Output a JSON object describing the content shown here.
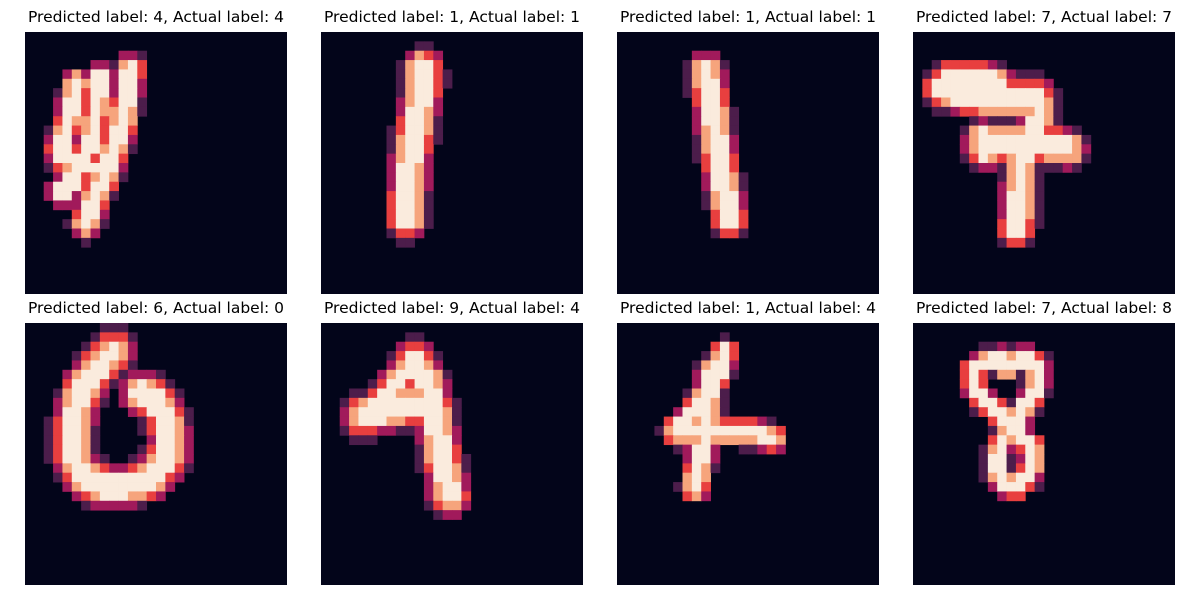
{
  "chart_data": [
    {
      "type": "heatmap",
      "title": "Predicted label: 4, Actual label: 4",
      "xlabel": "",
      "ylabel": "",
      "grid": false,
      "background_color": "#03051a",
      "colors": [
        "#03051a",
        "#4c1d4b",
        "#a11a5b",
        "#e83f3f",
        "#f6a47c",
        "#faebdd"
      ],
      "strokes": [
        {
          "w": 1.6,
          "pts": [
            [
              8,
              5
            ],
            [
              7.5,
              9
            ],
            [
              7,
              12
            ],
            [
              6,
              14
            ],
            [
              5,
              16
            ],
            [
              4,
              17
            ]
          ]
        },
        {
          "w": 1.6,
          "pts": [
            [
              5.5,
              5.5
            ],
            [
              5,
              8
            ],
            [
              4.5,
              10
            ],
            [
              3.8,
              12.5
            ],
            [
              4,
              13.5
            ],
            [
              6,
              14
            ],
            [
              7,
              14.5
            ]
          ]
        },
        {
          "w": 1.7,
          "pts": [
            [
              11.2,
              4
            ],
            [
              11,
              6
            ],
            [
              10.5,
              9
            ],
            [
              9.8,
              12
            ],
            [
              9,
              14
            ],
            [
              8,
              16.5
            ],
            [
              7,
              19
            ],
            [
              6.5,
              20.5
            ]
          ]
        }
      ]
    },
    {
      "type": "heatmap",
      "title": "Predicted label: 1, Actual label: 1",
      "xlabel": "",
      "ylabel": "",
      "grid": false,
      "background_color": "#03051a",
      "colors": [
        "#03051a",
        "#4c1d4b",
        "#a11a5b",
        "#e83f3f",
        "#f6a47c",
        "#faebdd"
      ],
      "strokes": [
        {
          "w": 2.2,
          "pts": [
            [
              10.8,
              3.8
            ],
            [
              11,
              5
            ],
            [
              10.5,
              8
            ],
            [
              10,
              11
            ],
            [
              9.5,
              14
            ],
            [
              9.3,
              17
            ],
            [
              9.2,
              20
            ]
          ]
        }
      ]
    },
    {
      "type": "heatmap",
      "title": "Predicted label: 1, Actual label: 1",
      "xlabel": "",
      "ylabel": "",
      "grid": false,
      "background_color": "#03051a",
      "colors": [
        "#03051a",
        "#4c1d4b",
        "#a11a5b",
        "#e83f3f",
        "#f6a47c",
        "#faebdd"
      ],
      "strokes": [
        {
          "w": 2.0,
          "pts": [
            [
              9.5,
              4.2
            ],
            [
              10,
              7
            ],
            [
              10.4,
              10
            ],
            [
              10.8,
              13
            ],
            [
              11.3,
              16
            ],
            [
              11.8,
              18.5
            ],
            [
              12,
              20
            ]
          ]
        }
      ]
    },
    {
      "type": "heatmap",
      "title": "Predicted label: 7, Actual label: 7",
      "xlabel": "",
      "ylabel": "",
      "grid": false,
      "background_color": "#03051a",
      "colors": [
        "#03051a",
        "#4c1d4b",
        "#a11a5b",
        "#e83f3f",
        "#f6a47c",
        "#faebdd"
      ],
      "strokes": [
        {
          "w": 2.0,
          "pts": [
            [
              4,
              5
            ],
            [
              7,
              5
            ],
            [
              9,
              5.5
            ]
          ]
        },
        {
          "w": 2.2,
          "pts": [
            [
              3.2,
              6
            ],
            [
              5.5,
              6.8
            ],
            [
              8,
              7.2
            ],
            [
              10.5,
              7.2
            ],
            [
              13,
              7
            ]
          ]
        },
        {
          "w": 2.0,
          "pts": [
            [
              13,
              7
            ],
            [
              13.5,
              8.5
            ],
            [
              13,
              10.5
            ],
            [
              12.5,
              12
            ],
            [
              12,
              13
            ]
          ]
        },
        {
          "w": 2.2,
          "pts": [
            [
              7.5,
              11.8
            ],
            [
              10,
              11.8
            ],
            [
              13,
              12
            ],
            [
              15.5,
              12.2
            ],
            [
              16.5,
              12.5
            ]
          ]
        },
        {
          "w": 1.8,
          "pts": [
            [
              7.5,
              11
            ],
            [
              7.6,
              13
            ]
          ]
        },
        {
          "w": 2.0,
          "pts": [
            [
              11.5,
              13
            ],
            [
              11.5,
              16
            ],
            [
              11.3,
              19
            ],
            [
              11,
              21
            ]
          ]
        }
      ]
    },
    {
      "type": "heatmap",
      "title": "Predicted label: 6, Actual label: 0",
      "xlabel": "",
      "ylabel": "",
      "grid": false,
      "background_color": "#03051a",
      "colors": [
        "#03051a",
        "#4c1d4b",
        "#a11a5b",
        "#e83f3f",
        "#f6a47c",
        "#faebdd"
      ],
      "strokes": [
        {
          "w": 2.3,
          "pts": [
            [
              9.5,
              3
            ],
            [
              8,
              4.5
            ],
            [
              6.5,
              6.5
            ],
            [
              5.5,
              9
            ],
            [
              5,
              12
            ],
            [
              5.2,
              14.5
            ],
            [
              6.5,
              16.5
            ],
            [
              8.5,
              17.5
            ],
            [
              11,
              17.5
            ],
            [
              13.5,
              16.5
            ],
            [
              15.2,
              14.5
            ],
            [
              15.5,
              12
            ],
            [
              14.8,
              9.5
            ],
            [
              13.8,
              8.2
            ],
            [
              12.5,
              7.5
            ]
          ]
        }
      ]
    },
    {
      "type": "heatmap",
      "title": "Predicted label: 9, Actual label: 4",
      "xlabel": "",
      "ylabel": "",
      "grid": false,
      "background_color": "#03051a",
      "colors": [
        "#03051a",
        "#4c1d4b",
        "#a11a5b",
        "#e83f3f",
        "#f6a47c",
        "#faebdd"
      ],
      "strokes": [
        {
          "w": 2.3,
          "pts": [
            [
              4.5,
              10
            ],
            [
              7.5,
              9.2
            ],
            [
              10,
              8.8
            ],
            [
              11.8,
              8.5
            ]
          ]
        },
        {
          "w": 1.8,
          "pts": [
            [
              5,
              10.3
            ],
            [
              6.8,
              8
            ],
            [
              8.8,
              5.5
            ],
            [
              10,
              4
            ]
          ]
        },
        {
          "w": 2.2,
          "pts": [
            [
              10,
              4
            ],
            [
              11.2,
              6
            ],
            [
              12,
              9
            ],
            [
              12.5,
              12
            ],
            [
              13,
              15
            ],
            [
              13.5,
              17
            ],
            [
              13.7,
              18.5
            ]
          ]
        }
      ]
    },
    {
      "type": "heatmap",
      "title": "Predicted label: 1, Actual label: 4",
      "xlabel": "",
      "ylabel": "",
      "grid": false,
      "background_color": "#03051a",
      "colors": [
        "#03051a",
        "#4c1d4b",
        "#a11a5b",
        "#e83f3f",
        "#f6a47c",
        "#faebdd"
      ],
      "strokes": [
        {
          "w": 1.5,
          "pts": [
            [
              11.5,
              3
            ],
            [
              11,
              5
            ],
            [
              10,
              7
            ],
            [
              9,
              8.5
            ],
            [
              8,
              9.8
            ],
            [
              7,
              10.8
            ],
            [
              6.2,
              11.8
            ]
          ]
        },
        {
          "w": 1.6,
          "pts": [
            [
              6.5,
              11.2
            ],
            [
              9,
              11.8
            ],
            [
              12,
              11.5
            ],
            [
              15,
              11.8
            ],
            [
              16.5,
              12.3
            ]
          ]
        },
        {
          "w": 1.6,
          "pts": [
            [
              10,
              5.2
            ],
            [
              9.8,
              8
            ],
            [
              9.5,
              11
            ],
            [
              9,
              14
            ],
            [
              8.6,
              16
            ],
            [
              8.3,
              17.5
            ]
          ]
        }
      ]
    },
    {
      "type": "heatmap",
      "title": "Predicted label: 7, Actual label: 8",
      "xlabel": "",
      "ylabel": "",
      "grid": false,
      "background_color": "#03051a",
      "colors": [
        "#03051a",
        "#4c1d4b",
        "#a11a5b",
        "#e83f3f",
        "#f6a47c",
        "#faebdd"
      ],
      "strokes": [
        {
          "w": 1.4,
          "pts": [
            [
              9.3,
              3.8
            ],
            [
              7.5,
              4.2
            ],
            [
              6.5,
              5
            ],
            [
              6.5,
              6.8
            ],
            [
              7.5,
              8.2
            ],
            [
              9,
              9.5
            ],
            [
              10,
              10.5
            ],
            [
              10.5,
              11.5
            ]
          ]
        },
        {
          "w": 1.4,
          "pts": [
            [
              9.3,
              3.8
            ],
            [
              10,
              4.8
            ],
            [
              11,
              4
            ],
            [
              12.2,
              3.8
            ],
            [
              13.3,
              4.6
            ],
            [
              13.3,
              6.5
            ],
            [
              12.5,
              8.2
            ],
            [
              11.5,
              9.5
            ],
            [
              10.8,
              11
            ]
          ]
        },
        {
          "w": 1.4,
          "pts": [
            [
              10.5,
              11.5
            ],
            [
              9.5,
              12.5
            ],
            [
              9,
              14
            ],
            [
              9,
              16
            ],
            [
              9.8,
              17.3
            ],
            [
              11,
              17.5
            ],
            [
              12.2,
              16.5
            ],
            [
              12.8,
              14.8
            ],
            [
              12.5,
              13
            ],
            [
              11.2,
              12
            ]
          ]
        }
      ]
    }
  ]
}
